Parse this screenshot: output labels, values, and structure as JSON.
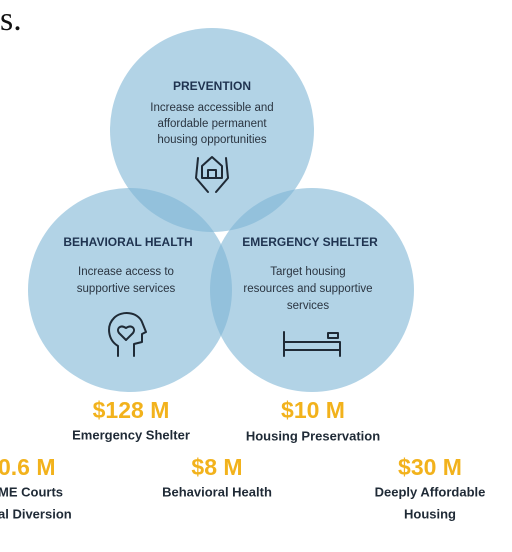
{
  "header_fragment": "s.",
  "circles": [
    {
      "title": "PREVENTION",
      "lines": [
        "Increase accessible and",
        "affordable permanent",
        "housing opportunities"
      ]
    },
    {
      "title": "BEHAVIORAL HEALTH",
      "lines": [
        "Increase access to",
        "supportive services"
      ]
    },
    {
      "title": "EMERGENCY SHELTER",
      "lines": [
        "Target housing",
        "resources and supportive",
        "services"
      ]
    }
  ],
  "amounts": [
    {
      "amount": "$128 M",
      "lines": [
        "Emergency Shelter"
      ]
    },
    {
      "amount": "$10 M",
      "lines": [
        "Housing Preservation"
      ]
    },
    {
      "amount": "0.6 M",
      "lines": [
        "ME Courts",
        "al Diversion"
      ]
    },
    {
      "amount": "$8 M",
      "lines": [
        "Behavioral Health"
      ]
    },
    {
      "amount": "$30 M",
      "lines": [
        "Deeply Affordable",
        "Housing"
      ]
    }
  ]
}
